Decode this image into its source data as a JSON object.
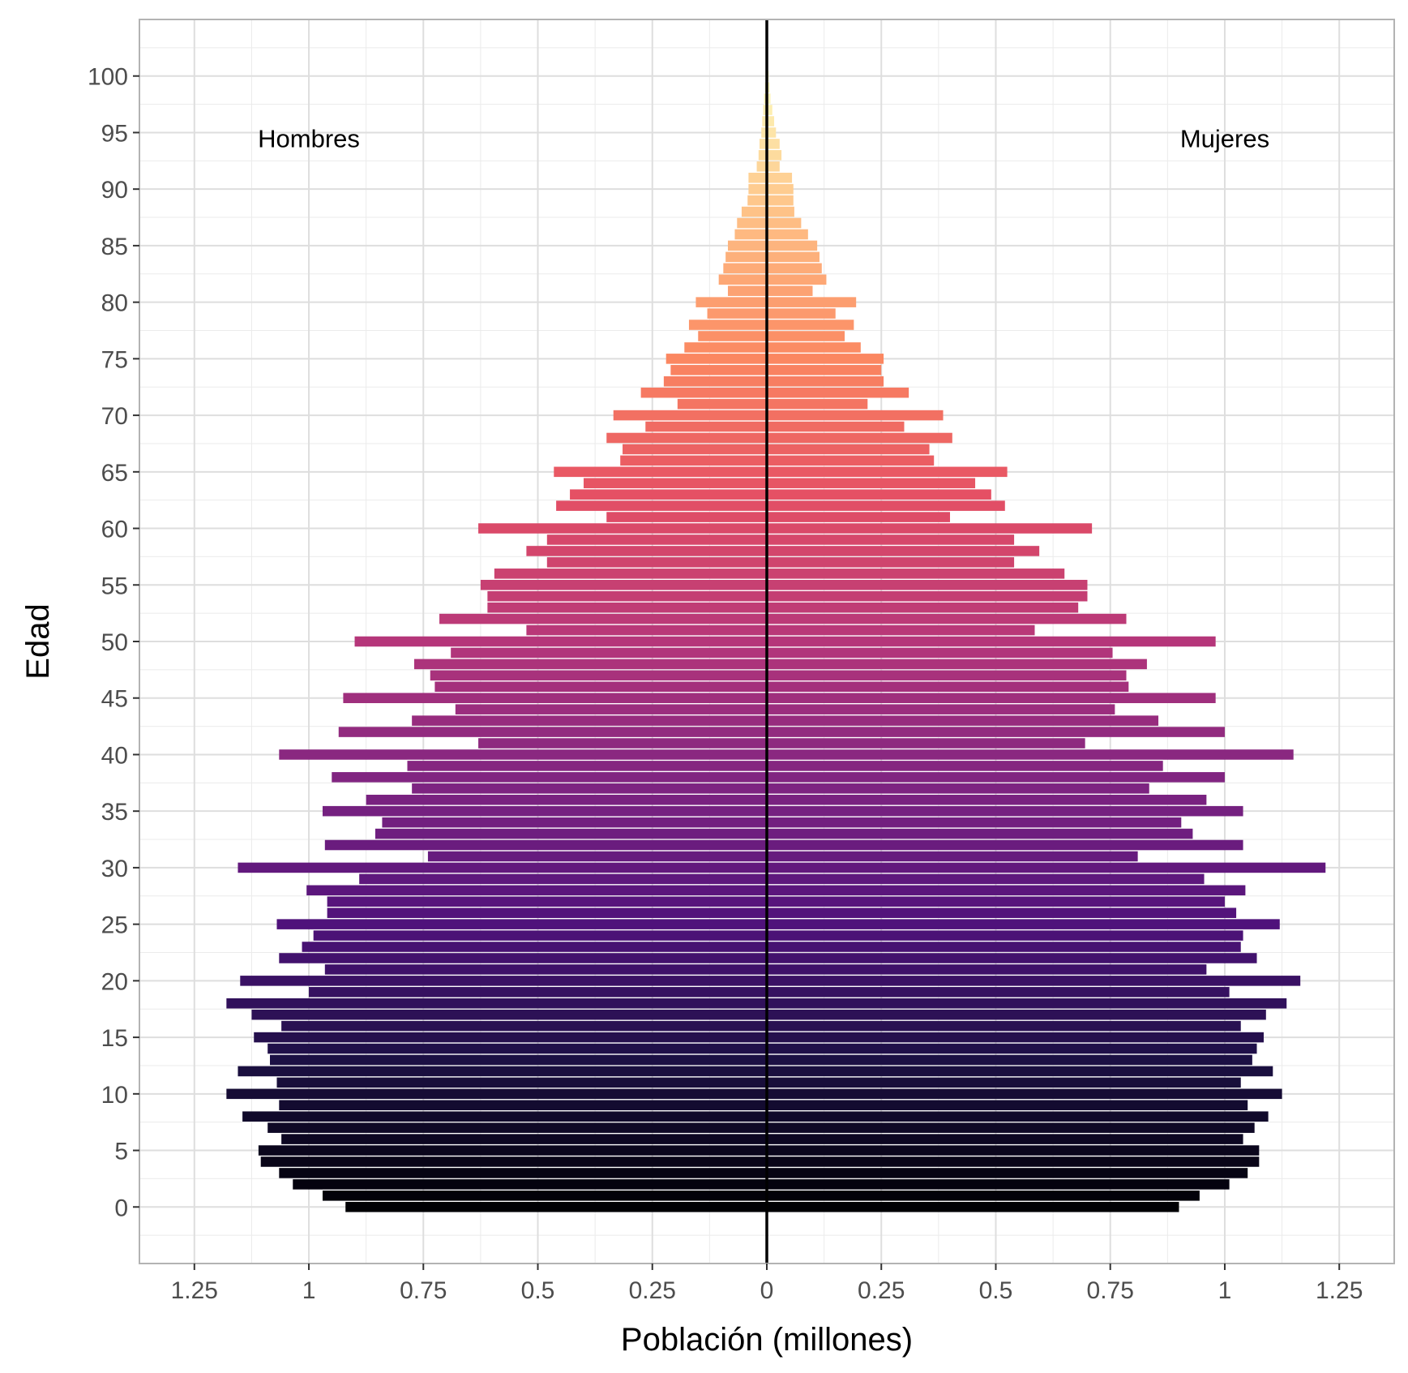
{
  "chart_data": {
    "type": "bar",
    "orientation": "horizontal-pyramid",
    "xlabel": "Población (millones)",
    "ylabel": "Edad",
    "xlim": [
      -1.37,
      1.37
    ],
    "ylim": [
      -5,
      105
    ],
    "x_ticks": [
      {
        "value": -1.25,
        "label": "1.25"
      },
      {
        "value": -1.0,
        "label": "1"
      },
      {
        "value": -0.75,
        "label": "0.75"
      },
      {
        "value": -0.5,
        "label": "0.5"
      },
      {
        "value": -0.25,
        "label": "0.25"
      },
      {
        "value": 0,
        "label": "0"
      },
      {
        "value": 0.25,
        "label": "0.25"
      },
      {
        "value": 0.5,
        "label": "0.5"
      },
      {
        "value": 0.75,
        "label": "0.75"
      },
      {
        "value": 1.0,
        "label": "1"
      },
      {
        "value": 1.25,
        "label": "1.25"
      }
    ],
    "y_ticks": [
      0,
      5,
      10,
      15,
      20,
      25,
      30,
      35,
      40,
      45,
      50,
      55,
      60,
      65,
      70,
      75,
      80,
      85,
      90,
      95,
      100
    ],
    "y_tick_labels": [
      "0",
      "5",
      "10",
      "15",
      "20",
      "25",
      "30",
      "35",
      "40",
      "45",
      "50",
      "55",
      "60",
      "65",
      "70",
      "75",
      "80",
      "85",
      "90",
      "95",
      "100"
    ],
    "grid": true,
    "legend": "none",
    "color_scale": "magma (dark at age 0, light at age 100)",
    "annotations": [
      {
        "text": "Hombres",
        "x": -1.0,
        "y": 94.5
      },
      {
        "text": "Mujeres",
        "x": 1.0,
        "y": 94.5
      }
    ],
    "ages": [
      0,
      1,
      2,
      3,
      4,
      5,
      6,
      7,
      8,
      9,
      10,
      11,
      12,
      13,
      14,
      15,
      16,
      17,
      18,
      19,
      20,
      21,
      22,
      23,
      24,
      25,
      26,
      27,
      28,
      29,
      30,
      31,
      32,
      33,
      34,
      35,
      36,
      37,
      38,
      39,
      40,
      41,
      42,
      43,
      44,
      45,
      46,
      47,
      48,
      49,
      50,
      51,
      52,
      53,
      54,
      55,
      56,
      57,
      58,
      59,
      60,
      61,
      62,
      63,
      64,
      65,
      66,
      67,
      68,
      69,
      70,
      71,
      72,
      73,
      74,
      75,
      76,
      77,
      78,
      79,
      80,
      81,
      82,
      83,
      84,
      85,
      86,
      87,
      88,
      89,
      90,
      91,
      92,
      93,
      94,
      95,
      96,
      97,
      98,
      99,
      100
    ],
    "series": [
      {
        "name": "Hombres",
        "values": [
          0.92,
          0.97,
          1.035,
          1.065,
          1.105,
          1.11,
          1.06,
          1.09,
          1.145,
          1.065,
          1.18,
          1.07,
          1.155,
          1.085,
          1.09,
          1.12,
          1.06,
          1.125,
          1.18,
          1.0,
          1.15,
          0.965,
          1.065,
          1.015,
          0.99,
          1.07,
          0.96,
          0.96,
          1.005,
          0.89,
          1.155,
          0.74,
          0.965,
          0.855,
          0.84,
          0.97,
          0.875,
          0.775,
          0.95,
          0.785,
          1.065,
          0.63,
          0.935,
          0.775,
          0.68,
          0.925,
          0.725,
          0.735,
          0.77,
          0.69,
          0.9,
          0.525,
          0.715,
          0.61,
          0.61,
          0.625,
          0.595,
          0.48,
          0.525,
          0.48,
          0.63,
          0.35,
          0.46,
          0.43,
          0.4,
          0.465,
          0.32,
          0.315,
          0.35,
          0.265,
          0.335,
          0.195,
          0.275,
          0.225,
          0.21,
          0.22,
          0.18,
          0.15,
          0.17,
          0.13,
          0.155,
          0.085,
          0.105,
          0.095,
          0.09,
          0.085,
          0.07,
          0.065,
          0.055,
          0.042,
          0.04,
          0.04,
          0.022,
          0.018,
          0.016,
          0.012,
          0.01,
          0.008,
          0.006,
          0.004,
          0.003
        ]
      },
      {
        "name": "Mujeres",
        "values": [
          0.9,
          0.945,
          1.01,
          1.05,
          1.075,
          1.075,
          1.04,
          1.065,
          1.095,
          1.05,
          1.125,
          1.035,
          1.105,
          1.06,
          1.07,
          1.085,
          1.035,
          1.09,
          1.135,
          1.01,
          1.165,
          0.96,
          1.07,
          1.035,
          1.04,
          1.12,
          1.025,
          1.0,
          1.045,
          0.955,
          1.22,
          0.81,
          1.04,
          0.93,
          0.905,
          1.04,
          0.96,
          0.835,
          1.0,
          0.865,
          1.15,
          0.695,
          1.0,
          0.855,
          0.76,
          0.98,
          0.79,
          0.785,
          0.83,
          0.755,
          0.98,
          0.585,
          0.785,
          0.68,
          0.7,
          0.7,
          0.65,
          0.54,
          0.595,
          0.54,
          0.71,
          0.4,
          0.52,
          0.49,
          0.455,
          0.525,
          0.365,
          0.355,
          0.405,
          0.3,
          0.385,
          0.22,
          0.31,
          0.255,
          0.25,
          0.255,
          0.205,
          0.17,
          0.19,
          0.15,
          0.195,
          0.1,
          0.13,
          0.12,
          0.115,
          0.11,
          0.09,
          0.075,
          0.06,
          0.058,
          0.058,
          0.055,
          0.028,
          0.032,
          0.028,
          0.02,
          0.016,
          0.012,
          0.008,
          0.006,
          0.004
        ]
      }
    ]
  }
}
